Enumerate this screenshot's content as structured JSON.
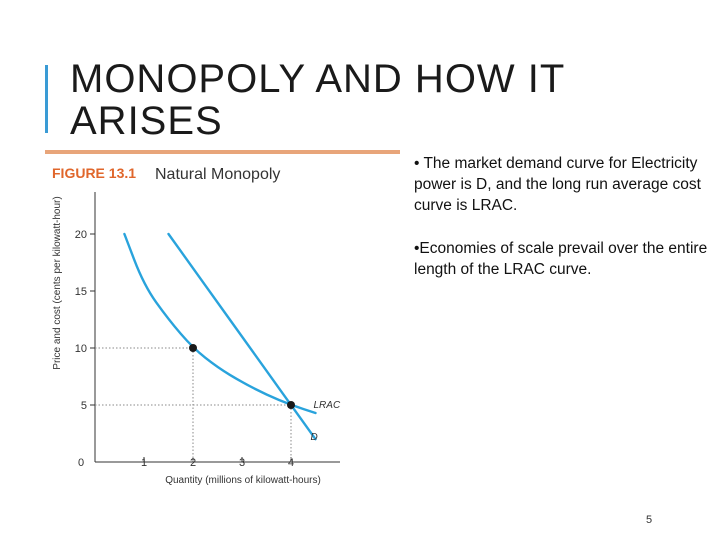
{
  "slide": {
    "title_line1": "MONOPOLY AND HOW IT",
    "title_line2": "ARISES",
    "bullets": [
      "• The market demand curve for Electricity power is D, and the long run average cost curve is LRAC.",
      "•Economies of scale prevail over the  entire length of the LRAC curve."
    ],
    "page_number": "5"
  },
  "colors": {
    "accent": "#3a9bd5",
    "figure_rule": "#e8a57a",
    "figure_label": "#e0662b",
    "curve": "#29a3dc",
    "point": "#1a1a1a",
    "axis": "#333333",
    "guide": "#888888"
  },
  "chart_data": {
    "type": "line",
    "figure_label": "FIGURE 13.1",
    "title": "Natural Monopoly",
    "xlabel": "Quantity (millions of kilowatt-hours)",
    "ylabel": "Price and cost (cents per kilowatt-hour)",
    "xlim": [
      0,
      5
    ],
    "ylim": [
      0,
      22
    ],
    "xticks": [
      "0",
      "1",
      "2",
      "3",
      "4"
    ],
    "yticks": [
      "5",
      "10",
      "15",
      "20"
    ],
    "series": [
      {
        "name": "LRAC",
        "x": [
          0.6,
          1.0,
          1.5,
          2.0,
          2.5,
          3.0,
          3.5,
          4.0,
          4.5
        ],
        "y": [
          20.0,
          15.5,
          12.5,
          10.0,
          8.3,
          7.0,
          5.9,
          5.0,
          4.3
        ]
      },
      {
        "name": "D",
        "x": [
          1.5,
          2.0,
          2.5,
          3.0,
          3.5,
          4.0,
          4.5
        ],
        "y": [
          20.0,
          17.0,
          14.0,
          11.0,
          8.0,
          5.0,
          2.0
        ]
      }
    ],
    "points": [
      {
        "x": 2,
        "y": 10
      },
      {
        "x": 4,
        "y": 5
      }
    ],
    "grid": false
  }
}
